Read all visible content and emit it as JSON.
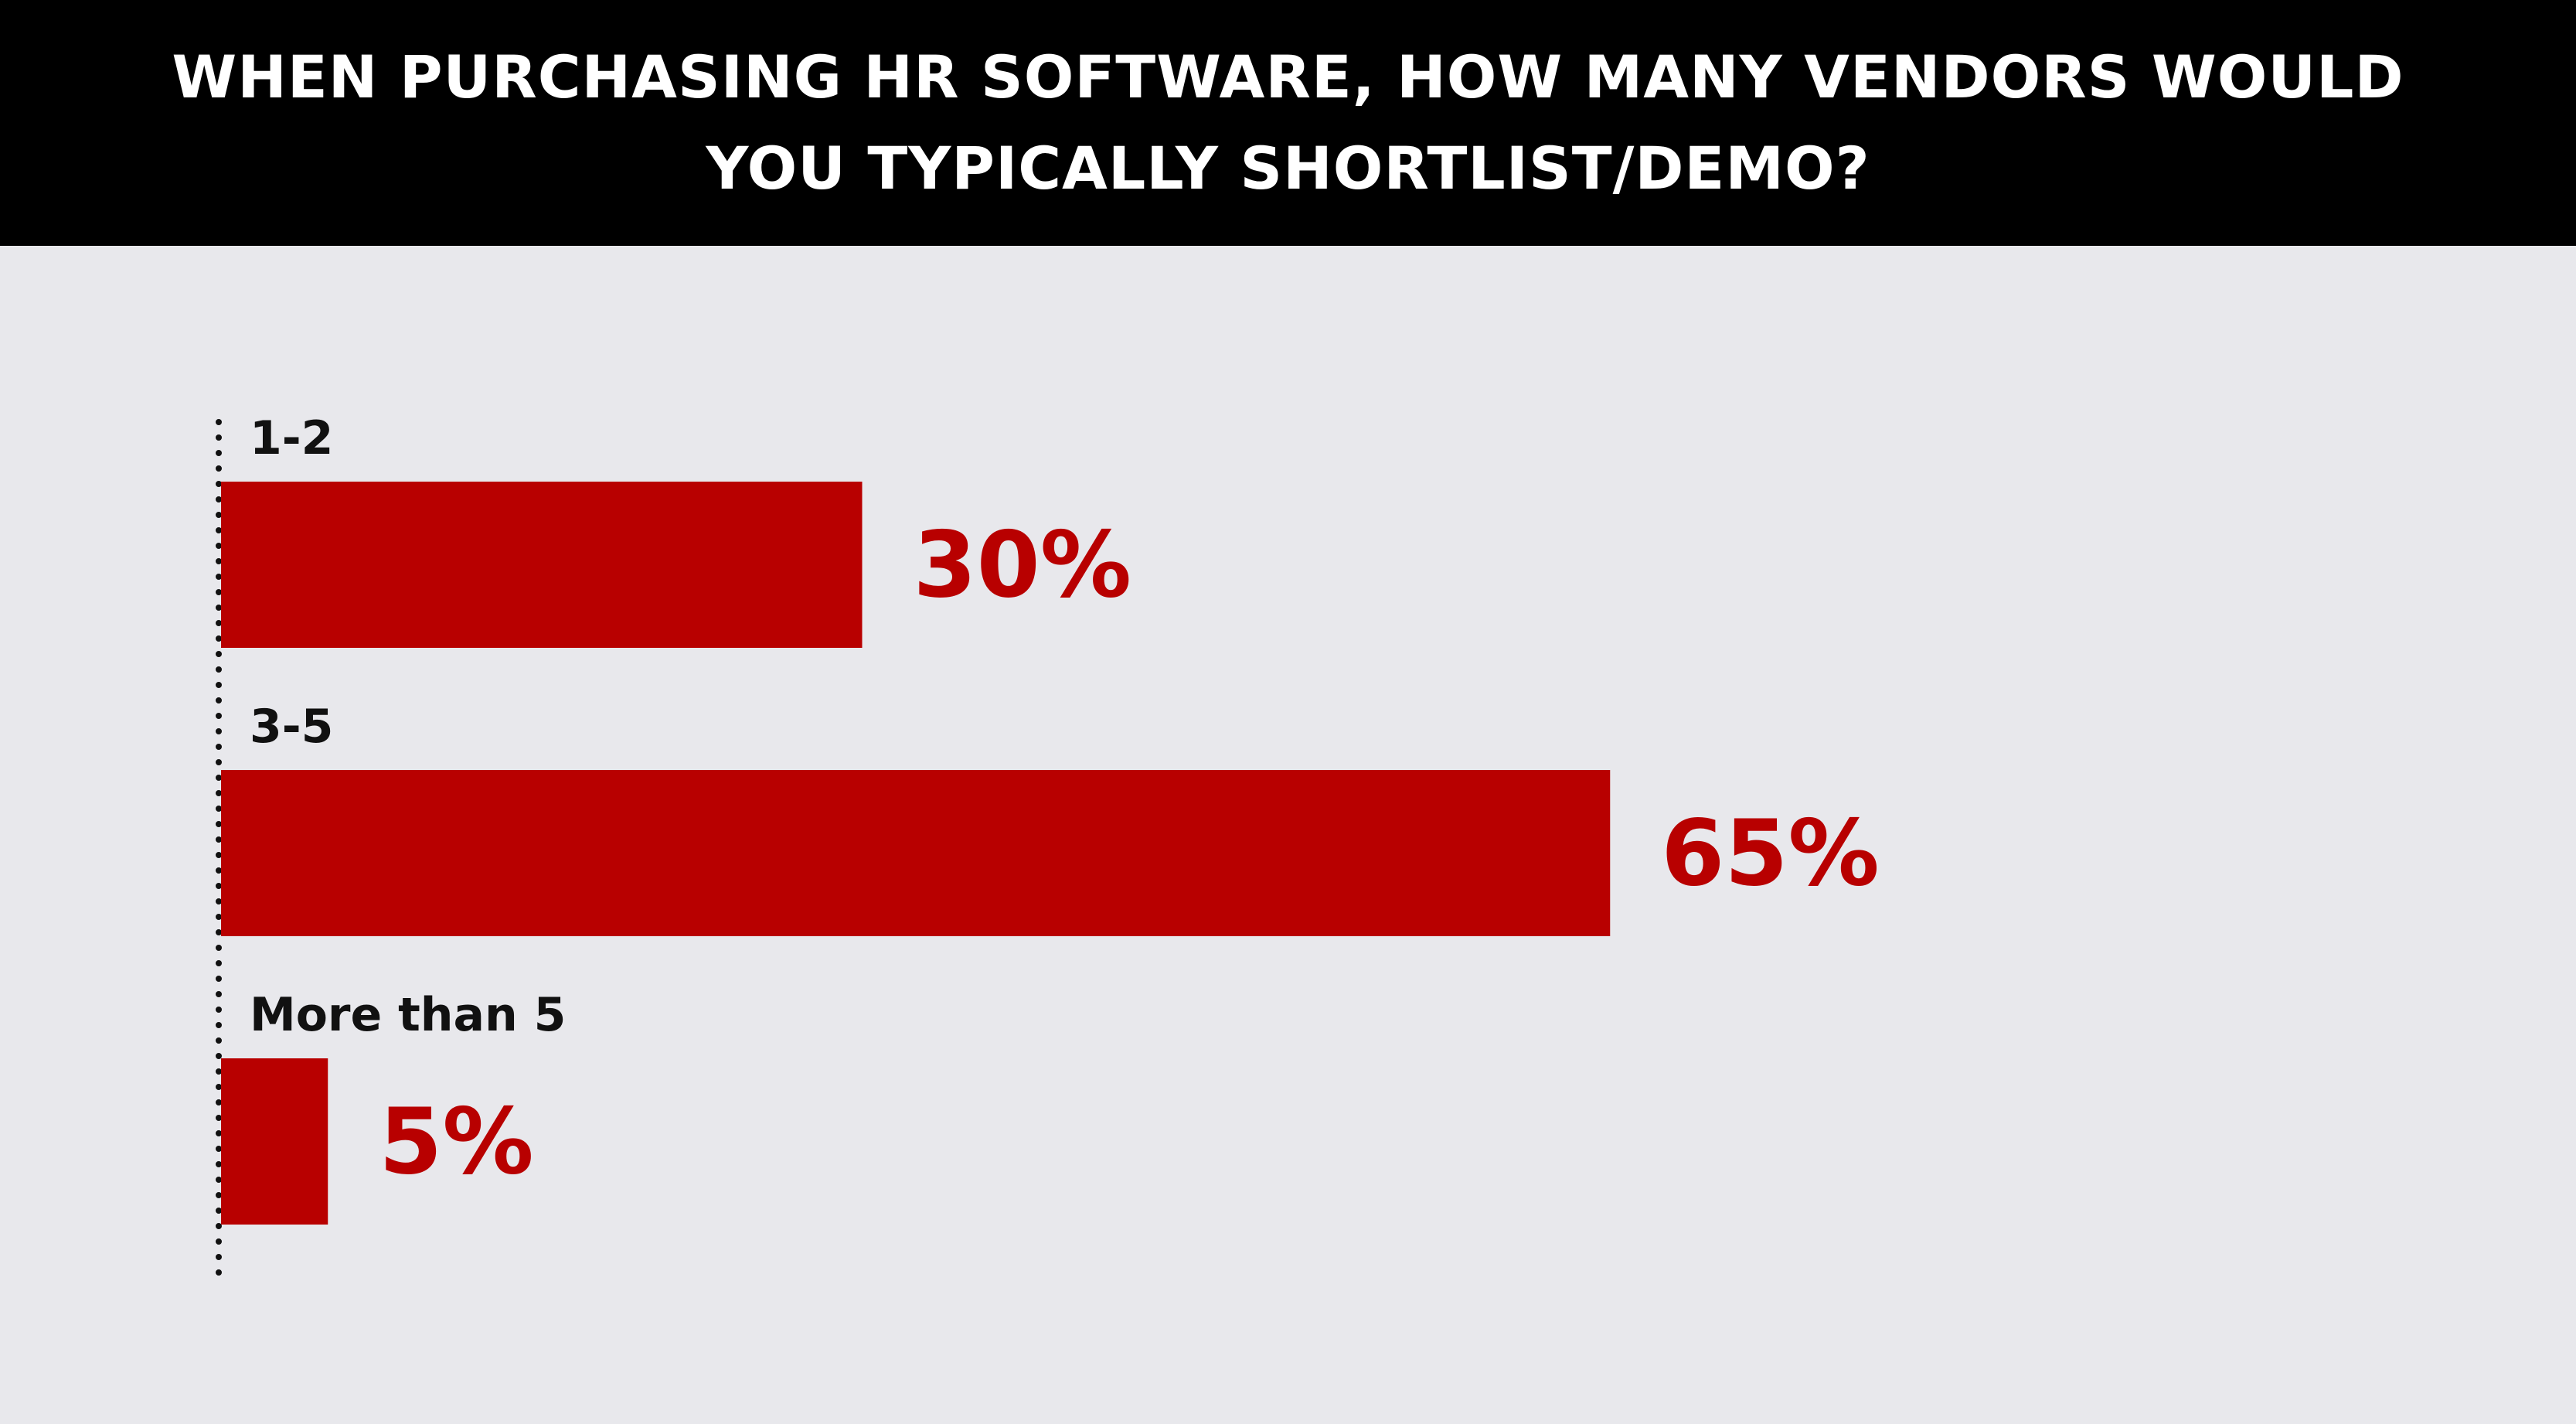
{
  "colors": {
    "header_bg": "#000000",
    "header_text": "#ffffff",
    "plot_bg": "#e8e8ec",
    "bar": "#b80000",
    "value_text": "#b80000",
    "category_text": "#111111",
    "axis": "#111111"
  },
  "chart_data": {
    "type": "bar",
    "orientation": "horizontal",
    "title": "WHEN PURCHASING HR SOFTWARE, HOW MANY VENDORS WOULD YOU TYPICALLY SHORTLIST/DEMO?",
    "categories": [
      "1-2",
      "3-5",
      "More than 5"
    ],
    "values": [
      30,
      65,
      5
    ],
    "value_labels": [
      "30%",
      "65%",
      "5%"
    ],
    "unit": "%",
    "xlim": [
      0,
      100
    ],
    "grid": false,
    "legend": "none",
    "axis_line": "dotted"
  }
}
